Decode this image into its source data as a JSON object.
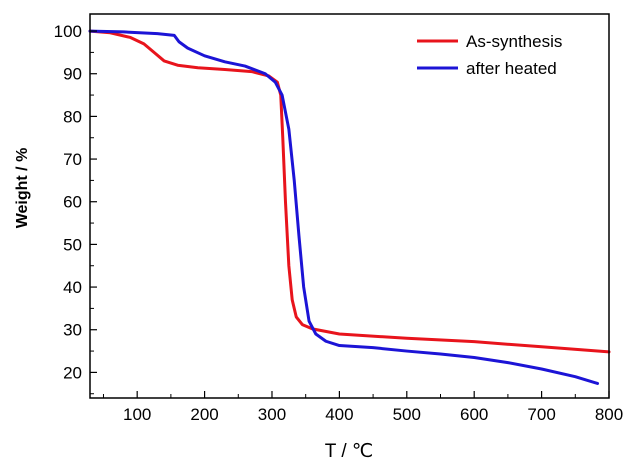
{
  "chart_data": {
    "type": "line",
    "xlabel": "T / ℃",
    "ylabel": "Weight / %",
    "xlim": [
      30,
      800
    ],
    "ylim": [
      14,
      104
    ],
    "x_ticks": [
      100,
      200,
      300,
      400,
      500,
      600,
      700,
      800
    ],
    "y_ticks": [
      20,
      30,
      40,
      50,
      60,
      70,
      80,
      90,
      100
    ],
    "legend_position": "top-right",
    "grid": false,
    "series": [
      {
        "name": "As-synthesis",
        "color": "#e8141c",
        "points": [
          [
            30,
            100
          ],
          [
            60,
            99.6
          ],
          [
            90,
            98.5
          ],
          [
            110,
            97.0
          ],
          [
            125,
            95.0
          ],
          [
            140,
            93.0
          ],
          [
            160,
            92.0
          ],
          [
            190,
            91.4
          ],
          [
            230,
            91.0
          ],
          [
            270,
            90.5
          ],
          [
            295,
            89.5
          ],
          [
            308,
            88.0
          ],
          [
            313,
            85.0
          ],
          [
            316,
            75.0
          ],
          [
            320,
            60.0
          ],
          [
            325,
            45.0
          ],
          [
            330,
            37.0
          ],
          [
            336,
            33.0
          ],
          [
            345,
            31.2
          ],
          [
            360,
            30.2
          ],
          [
            400,
            29.0
          ],
          [
            500,
            28.0
          ],
          [
            600,
            27.2
          ],
          [
            700,
            26.0
          ],
          [
            800,
            24.8
          ]
        ]
      },
      {
        "name": "after heated",
        "color": "#1c14d6",
        "points": [
          [
            30,
            100
          ],
          [
            80,
            99.8
          ],
          [
            130,
            99.4
          ],
          [
            155,
            99.0
          ],
          [
            162,
            97.5
          ],
          [
            175,
            96.0
          ],
          [
            200,
            94.2
          ],
          [
            230,
            92.8
          ],
          [
            260,
            91.8
          ],
          [
            290,
            90.0
          ],
          [
            305,
            88.0
          ],
          [
            315,
            85.0
          ],
          [
            325,
            77.0
          ],
          [
            333,
            65.0
          ],
          [
            340,
            52.0
          ],
          [
            347,
            40.0
          ],
          [
            355,
            32.0
          ],
          [
            365,
            29.0
          ],
          [
            380,
            27.3
          ],
          [
            400,
            26.3
          ],
          [
            450,
            25.8
          ],
          [
            500,
            25.0
          ],
          [
            550,
            24.3
          ],
          [
            600,
            23.5
          ],
          [
            650,
            22.3
          ],
          [
            700,
            20.8
          ],
          [
            750,
            19.0
          ],
          [
            783,
            17.4
          ]
        ]
      }
    ]
  }
}
